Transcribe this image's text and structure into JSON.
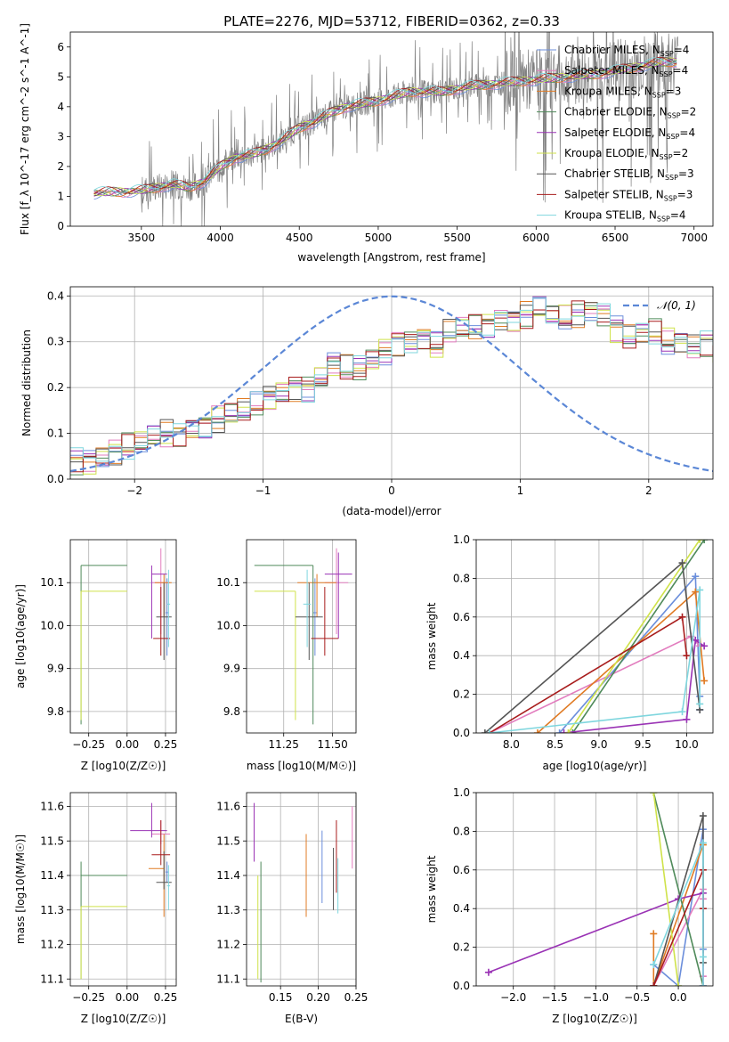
{
  "title": "PLATE=2276, MJD=53712, FIBERID=0362, z=0.33",
  "chart_data": [
    {
      "id": "spectrum",
      "type": "line",
      "title": "PLATE=2276, MJD=53712, FIBERID=0362, z=0.33",
      "xlabel": "wavelength [Angstrom, rest frame]",
      "ylabel": "Flux [f_λ 10^-17 erg cm^-2 s^-1 A^-1]",
      "xlim": [
        3050,
        7120
      ],
      "ylim": [
        0,
        6.5
      ],
      "xticks": [
        3500,
        4000,
        4500,
        5000,
        5500,
        6000,
        6500,
        7000
      ],
      "yticks": [
        0,
        1,
        2,
        3,
        4,
        5,
        6
      ],
      "grid": false,
      "legend_position": "top-right",
      "continuum": {
        "x": [
          3200,
          3300,
          3400,
          3500,
          3600,
          3700,
          3800,
          3900,
          4000,
          4100,
          4200,
          4300,
          4400,
          4500,
          4600,
          4700,
          4800,
          4900,
          5000,
          5200,
          5400,
          5600,
          5800,
          6000,
          6200,
          6400,
          6600,
          6800
        ],
        "y": [
          1.1,
          1.15,
          1.15,
          1.2,
          1.3,
          1.4,
          1.3,
          1.5,
          2.0,
          2.3,
          2.4,
          2.6,
          2.9,
          3.3,
          3.5,
          3.8,
          4.0,
          4.1,
          4.2,
          4.5,
          4.5,
          4.7,
          4.8,
          4.9,
          5.0,
          5.1,
          5.3,
          5.5
        ]
      },
      "legend": [
        {
          "label": "Chabrier MILES, N",
          "sub": "SSP",
          "suffix": "=4",
          "color": "#6b8edb"
        },
        {
          "label": "Salpeter MILES, N",
          "sub": "SSP",
          "suffix": "=4",
          "color": "#e27cbe"
        },
        {
          "label": "Kroupa MILES, N",
          "sub": "SSP",
          "suffix": "=3",
          "color": "#e07b24"
        },
        {
          "label": "Chabrier ELODIE, N",
          "sub": "SSP",
          "suffix": "=2",
          "color": "#4f8a5a"
        },
        {
          "label": "Salpeter ELODIE, N",
          "sub": "SSP",
          "suffix": "=4",
          "color": "#9a33b5"
        },
        {
          "label": "Kroupa ELODIE, N",
          "sub": "SSP",
          "suffix": "=2",
          "color": "#cfe24a"
        },
        {
          "label": "Chabrier STELIB, N",
          "sub": "SSP",
          "suffix": "=3",
          "color": "#555555"
        },
        {
          "label": "Salpeter STELIB, N",
          "sub": "SSP",
          "suffix": "=3",
          "color": "#a81c1c"
        },
        {
          "label": "Kroupa STELIB, N",
          "sub": "SSP",
          "suffix": "=4",
          "color": "#7fd6de"
        }
      ]
    },
    {
      "id": "residuals",
      "type": "bar",
      "xlabel": "(data-model)/error",
      "ylabel": "Normed distribution",
      "xlim": [
        -2.5,
        2.5
      ],
      "ylim": [
        0,
        0.42
      ],
      "xticks": [
        -2,
        -1,
        0,
        1,
        2
      ],
      "yticks": [
        0.0,
        0.1,
        0.2,
        0.3,
        0.4
      ],
      "grid": true,
      "legend_position": "top-right",
      "legend_label": "𝒩(0, 1)",
      "bin_width": 0.1,
      "bin_start": -2.5,
      "base_values": [
        0.04,
        0.04,
        0.05,
        0.06,
        0.07,
        0.08,
        0.09,
        0.1,
        0.1,
        0.11,
        0.12,
        0.13,
        0.14,
        0.15,
        0.16,
        0.18,
        0.19,
        0.2,
        0.2,
        0.22,
        0.25,
        0.24,
        0.24,
        0.26,
        0.28,
        0.3,
        0.3,
        0.31,
        0.29,
        0.32,
        0.33,
        0.33,
        0.34,
        0.35,
        0.35,
        0.36,
        0.37,
        0.36,
        0.35,
        0.36,
        0.37,
        0.36,
        0.33,
        0.31,
        0.32,
        0.32,
        0.3,
        0.3,
        0.29,
        0.3,
        0.28,
        0.27,
        0.26,
        0.24,
        0.24,
        0.23,
        0.22,
        0.2,
        0.19,
        0.18,
        0.17,
        0.16,
        0.15,
        0.13,
        0.12,
        0.11,
        0.1,
        0.09,
        0.08,
        0.07,
        0.06,
        0.05,
        0.04,
        0.04,
        0.04,
        0.03,
        0.03,
        0.02,
        0.02,
        0.02
      ],
      "series_colors": [
        "#6b8edb",
        "#e27cbe",
        "#e07b24",
        "#4f8a5a",
        "#9a33b5",
        "#cfe24a",
        "#555555",
        "#a81c1c",
        "#7fd6de"
      ]
    },
    {
      "id": "age-vs-Z",
      "type": "scatter",
      "xlabel": "Z [log10(Z/Z☉)]",
      "ylabel": "age  [log10(age/yr)]",
      "xlim": [
        -0.37,
        0.32
      ],
      "ylim": [
        9.75,
        10.2
      ],
      "xticks": [
        -0.25,
        0.0,
        0.25
      ],
      "xticklabels": [
        "−0.25",
        "0.00",
        "0.25"
      ],
      "yticks": [
        9.8,
        9.9,
        10.0,
        10.1
      ],
      "grid": true,
      "points": [
        {
          "x": 0.26,
          "y": 10.03,
          "xe": [
            0.01,
            0.01
          ],
          "ye": [
            0.1,
            0.08
          ],
          "color": "#6b8edb"
        },
        {
          "x": 0.22,
          "y": 10.1,
          "xe": [
            0.06,
            0.06
          ],
          "ye": [
            0.12,
            0.08
          ],
          "color": "#e27cbe"
        },
        {
          "x": 0.24,
          "y": 10.1,
          "xe": [
            0.06,
            0.05
          ],
          "ye": [
            0.08,
            0.02
          ],
          "color": "#e07b24"
        },
        {
          "x": -0.3,
          "y": 10.14,
          "xe": [
            0.0,
            0.3
          ],
          "ye": [
            0.37,
            0.0
          ],
          "color": "#4f8a5a"
        },
        {
          "x": 0.16,
          "y": 10.12,
          "xe": [
            0.0,
            0.1
          ],
          "ye": [
            0.15,
            0.02
          ],
          "color": "#9a33b5"
        },
        {
          "x": -0.3,
          "y": 10.08,
          "xe": [
            0.0,
            0.3
          ],
          "ye": [
            0.3,
            0.0
          ],
          "color": "#cfe24a"
        },
        {
          "x": 0.24,
          "y": 10.02,
          "xe": [
            0.05,
            0.05
          ],
          "ye": [
            0.1,
            0.08
          ],
          "color": "#555555"
        },
        {
          "x": 0.22,
          "y": 9.97,
          "xe": [
            0.05,
            0.06
          ],
          "ye": [
            0.04,
            0.12
          ],
          "color": "#a81c1c"
        },
        {
          "x": 0.27,
          "y": 10.05,
          "xe": [
            0.01,
            0.01
          ],
          "ye": [
            0.1,
            0.08
          ],
          "color": "#7fd6de"
        }
      ]
    },
    {
      "id": "age-vs-mass",
      "type": "scatter",
      "xlabel": "mass [log10(M/M☉)]",
      "ylabel": "",
      "xlim": [
        11.06,
        11.62
      ],
      "ylim": [
        9.75,
        10.2
      ],
      "xticks": [
        11.25,
        11.5
      ],
      "xticklabels": [
        "11.25",
        "11.50"
      ],
      "yticks": [
        9.8,
        9.9,
        10.0,
        10.1
      ],
      "grid": true,
      "points": [
        {
          "x": 11.41,
          "y": 10.03,
          "xe": [
            0.01,
            0.01
          ],
          "ye": [
            0.1,
            0.08
          ],
          "color": "#6b8edb"
        },
        {
          "x": 11.52,
          "y": 10.1,
          "xe": [
            0.06,
            0.06
          ],
          "ye": [
            0.12,
            0.08
          ],
          "color": "#e27cbe"
        },
        {
          "x": 11.42,
          "y": 10.1,
          "xe": [
            0.1,
            0.1
          ],
          "ye": [
            0.08,
            0.02
          ],
          "color": "#e07b24"
        },
        {
          "x": 11.4,
          "y": 10.14,
          "xe": [
            0.3,
            0.0
          ],
          "ye": [
            0.37,
            0.0
          ],
          "color": "#4f8a5a"
        },
        {
          "x": 11.53,
          "y": 10.12,
          "xe": [
            0.07,
            0.07
          ],
          "ye": [
            0.15,
            0.05
          ],
          "color": "#9a33b5"
        },
        {
          "x": 11.31,
          "y": 10.08,
          "xe": [
            0.21,
            0.0
          ],
          "ye": [
            0.3,
            0.0
          ],
          "color": "#cfe24a"
        },
        {
          "x": 11.38,
          "y": 10.02,
          "xe": [
            0.07,
            0.07
          ],
          "ye": [
            0.1,
            0.08
          ],
          "color": "#555555"
        },
        {
          "x": 11.46,
          "y": 9.97,
          "xe": [
            0.07,
            0.07
          ],
          "ye": [
            0.04,
            0.12
          ],
          "color": "#a81c1c"
        },
        {
          "x": 11.37,
          "y": 10.05,
          "xe": [
            0.02,
            0.02
          ],
          "ye": [
            0.1,
            0.08
          ],
          "color": "#7fd6de"
        }
      ]
    },
    {
      "id": "weight-vs-age",
      "type": "line",
      "xlabel": "age  [log10(age/yr)]",
      "ylabel": "mass weight",
      "xlim": [
        7.6,
        10.3
      ],
      "ylim": [
        0,
        1.0
      ],
      "xticks": [
        8.0,
        8.5,
        9.0,
        9.5,
        10.0
      ],
      "xticklabels": [
        "8.0",
        "8.5",
        "9.0",
        "9.5",
        "10.0"
      ],
      "yticks": [
        0.0,
        0.2,
        0.4,
        0.6,
        0.8,
        1.0
      ],
      "yticklabels": [
        "0.0",
        "0.2",
        "0.4",
        "0.6",
        "0.8",
        "1.0"
      ],
      "grid": true,
      "series": [
        {
          "color": "#6b8edb",
          "x": [
            8.55,
            10.1,
            10.15,
            10.15
          ],
          "y": [
            0.0,
            0.81,
            0.19,
            0.12
          ]
        },
        {
          "color": "#e27cbe",
          "x": [
            7.75,
            10.05,
            10.15
          ],
          "y": [
            0.0,
            0.5,
            0.45
          ]
        },
        {
          "color": "#e07b24",
          "x": [
            8.3,
            10.1,
            10.2
          ],
          "y": [
            0.0,
            0.73,
            0.27
          ]
        },
        {
          "color": "#4f8a5a",
          "x": [
            8.7,
            10.2
          ],
          "y": [
            0.0,
            1.0
          ]
        },
        {
          "color": "#9a33b5",
          "x": [
            8.6,
            10.0,
            10.1,
            10.2
          ],
          "y": [
            0.0,
            0.07,
            0.48,
            0.45
          ]
        },
        {
          "color": "#cfe24a",
          "x": [
            8.65,
            10.15
          ],
          "y": [
            0.0,
            1.0
          ]
        },
        {
          "color": "#555555",
          "x": [
            7.7,
            9.95,
            10.15
          ],
          "y": [
            0.0,
            0.88,
            0.12
          ]
        },
        {
          "color": "#a81c1c",
          "x": [
            7.75,
            9.95,
            10.0
          ],
          "y": [
            0.0,
            0.6,
            0.4
          ]
        },
        {
          "color": "#7fd6de",
          "x": [
            7.75,
            9.95,
            10.15,
            10.15
          ],
          "y": [
            0.0,
            0.11,
            0.74,
            0.15
          ]
        }
      ]
    },
    {
      "id": "mass-vs-Z",
      "type": "scatter",
      "xlabel": "Z [log10(Z/Z☉)]",
      "ylabel": "mass [log10(M/M☉)]",
      "xlim": [
        -0.37,
        0.32
      ],
      "ylim": [
        11.08,
        11.64
      ],
      "xticks": [
        -0.25,
        0.0,
        0.25
      ],
      "xticklabels": [
        "−0.25",
        "0.00",
        "0.25"
      ],
      "yticks": [
        11.1,
        11.2,
        11.3,
        11.4,
        11.5,
        11.6
      ],
      "grid": true,
      "points": [
        {
          "x": 0.26,
          "y": 11.41,
          "xe": [
            0.01,
            0.01
          ],
          "ye": [
            0.03,
            0.03
          ],
          "color": "#6b8edb"
        },
        {
          "x": 0.22,
          "y": 11.52,
          "xe": [
            0.06,
            0.06
          ],
          "ye": [
            0.03,
            0.04
          ],
          "color": "#e27cbe"
        },
        {
          "x": 0.24,
          "y": 11.42,
          "xe": [
            0.1,
            0.0
          ],
          "ye": [
            0.14,
            0.1
          ],
          "color": "#e07b24"
        },
        {
          "x": -0.3,
          "y": 11.4,
          "xe": [
            0.0,
            0.3
          ],
          "ye": [
            0.3,
            0.04
          ],
          "color": "#4f8a5a"
        },
        {
          "x": 0.16,
          "y": 11.53,
          "xe": [
            0.14,
            0.1
          ],
          "ye": [
            0.02,
            0.08
          ],
          "color": "#9a33b5"
        },
        {
          "x": -0.3,
          "y": 11.31,
          "xe": [
            0.0,
            0.3
          ],
          "ye": [
            0.21,
            0.0
          ],
          "color": "#cfe24a"
        },
        {
          "x": 0.24,
          "y": 11.38,
          "xe": [
            0.05,
            0.05
          ],
          "ye": [
            0.02,
            0.09
          ],
          "color": "#555555"
        },
        {
          "x": 0.22,
          "y": 11.46,
          "xe": [
            0.06,
            0.06
          ],
          "ye": [
            0.03,
            0.1
          ],
          "color": "#a81c1c"
        },
        {
          "x": 0.27,
          "y": 11.37,
          "xe": [
            0.01,
            0.01
          ],
          "ye": [
            0.07,
            0.06
          ],
          "color": "#7fd6de"
        }
      ]
    },
    {
      "id": "mass-vs-EBV",
      "type": "scatter",
      "xlabel": "E(B-V)",
      "ylabel": "",
      "xlim": [
        0.105,
        0.25
      ],
      "ylim": [
        11.08,
        11.64
      ],
      "xticks": [
        0.15,
        0.2,
        0.25
      ],
      "xticklabels": [
        "0.15",
        "0.20",
        "0.25"
      ],
      "yticks": [
        11.1,
        11.2,
        11.3,
        11.4,
        11.5,
        11.6
      ],
      "grid": true,
      "points": [
        {
          "x": 0.205,
          "y": 11.41,
          "ye": [
            0.09,
            0.12
          ],
          "color": "#6b8edb"
        },
        {
          "x": 0.245,
          "y": 11.52,
          "ye": [
            0.1,
            0.08
          ],
          "color": "#e27cbe"
        },
        {
          "x": 0.184,
          "y": 11.42,
          "ye": [
            0.14,
            0.1
          ],
          "color": "#e07b24"
        },
        {
          "x": 0.124,
          "y": 11.27,
          "ye": [
            0.18,
            0.17
          ],
          "color": "#4f8a5a"
        },
        {
          "x": 0.115,
          "y": 11.5,
          "ye": [
            0.06,
            0.11
          ],
          "color": "#9a33b5"
        },
        {
          "x": 0.12,
          "y": 11.25,
          "ye": [
            0.15,
            0.15
          ],
          "color": "#cfe24a"
        },
        {
          "x": 0.22,
          "y": 11.4,
          "ye": [
            0.1,
            0.08
          ],
          "color": "#555555"
        },
        {
          "x": 0.224,
          "y": 11.47,
          "ye": [
            0.12,
            0.09
          ],
          "color": "#a81c1c"
        },
        {
          "x": 0.226,
          "y": 11.36,
          "ye": [
            0.07,
            0.09
          ],
          "color": "#7fd6de"
        }
      ]
    },
    {
      "id": "weight-vs-Z",
      "type": "line",
      "xlabel": "Z [log10(Z/Z☉)]",
      "ylabel": "mass weight",
      "xlim": [
        -2.45,
        0.42
      ],
      "ylim": [
        0,
        1.0
      ],
      "xticks": [
        -2.0,
        -1.5,
        -1.0,
        -0.5,
        0.0
      ],
      "xticklabels": [
        "−2.0",
        "−1.5",
        "−1.0",
        "−0.5",
        "0.0"
      ],
      "yticks": [
        0.0,
        0.2,
        0.4,
        0.6,
        0.8,
        1.0
      ],
      "yticklabels": [
        "0.0",
        "0.2",
        "0.4",
        "0.6",
        "0.8",
        "1.0"
      ],
      "grid": true,
      "series": [
        {
          "color": "#6b8edb",
          "x": [
            -0.3,
            0.0,
            0.3,
            0.3
          ],
          "y": [
            0.11,
            0.0,
            0.81,
            0.19
          ]
        },
        {
          "color": "#e27cbe",
          "x": [
            -0.3,
            0.3,
            0.3,
            0.3
          ],
          "y": [
            0.0,
            0.5,
            0.45,
            0.05
          ]
        },
        {
          "color": "#e07b24",
          "x": [
            -0.3,
            -0.3,
            0.3
          ],
          "y": [
            0.27,
            0.0,
            0.73
          ]
        },
        {
          "color": "#4f8a5a",
          "x": [
            -0.3,
            0.3
          ],
          "y": [
            1.0,
            0.0
          ]
        },
        {
          "color": "#9a33b5",
          "x": [
            -2.3,
            0.0,
            0.3,
            0.3
          ],
          "y": [
            0.07,
            0.45,
            0.48,
            0.0
          ]
        },
        {
          "color": "#cfe24a",
          "x": [
            -0.3,
            0.0
          ],
          "y": [
            1.0,
            0.0
          ]
        },
        {
          "color": "#555555",
          "x": [
            -0.3,
            0.3,
            0.3
          ],
          "y": [
            0.0,
            0.88,
            0.12
          ]
        },
        {
          "color": "#a81c1c",
          "x": [
            -0.3,
            0.3,
            0.3
          ],
          "y": [
            0.0,
            0.6,
            0.4
          ]
        },
        {
          "color": "#7fd6de",
          "x": [
            -0.3,
            0.3,
            0.3,
            0.3
          ],
          "y": [
            0.11,
            0.74,
            0.15,
            0.0
          ]
        }
      ]
    }
  ]
}
